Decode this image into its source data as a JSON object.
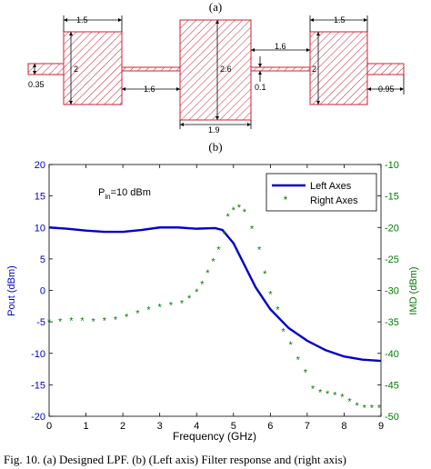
{
  "figure": {
    "caption_a": "(a)",
    "caption_b": "(b)",
    "caption": "Fig. 10.   (a) Designed LPF. (b) (Left axis) Filter response and (right axis)"
  },
  "layout_dims": {
    "d1": "1.5",
    "d2": "2",
    "d3": "0.35",
    "d4": "1.6",
    "d5": "2.6",
    "d6": "1.9",
    "d7": "1.6",
    "d8": "0.1",
    "d9": "2",
    "d10": "1.5",
    "d11": "0.95"
  },
  "chart_data": {
    "type": "line",
    "xlabel": "Frequency (GHz)",
    "ylabel_left": "Pout (dBm)",
    "ylabel_right": "IMD (dBm)",
    "xlim": [
      0,
      9
    ],
    "ylim_left": [
      -20,
      20
    ],
    "ylim_right": [
      -50,
      -10
    ],
    "xticks": [
      "0",
      "1",
      "2",
      "3",
      "4",
      "5",
      "6",
      "7",
      "8",
      "9"
    ],
    "yticks_left": [
      "20",
      "15",
      "10",
      "5",
      "0",
      "-5",
      "-10",
      "-15",
      "-20"
    ],
    "yticks_right": [
      "-10",
      "-15",
      "-20",
      "-25",
      "-30",
      "-35",
      "-40",
      "-45",
      "-50"
    ],
    "annotation": "P_in=10 dBm",
    "legend_position": "top-right",
    "colors": {
      "left": "#0000cc",
      "right": "#007a00"
    },
    "series": [
      {
        "name": "Left Axes",
        "axis": "left",
        "x": [
          0,
          0.5,
          1,
          1.5,
          2,
          2.5,
          3,
          3.5,
          4,
          4.5,
          4.7,
          5,
          5.3,
          5.6,
          6,
          6.5,
          7,
          7.5,
          8,
          8.5,
          9
        ],
        "y": [
          10,
          9.8,
          9.5,
          9.3,
          9.3,
          9.6,
          10,
          10,
          9.8,
          9.9,
          9.6,
          7.5,
          4,
          0.5,
          -3,
          -6,
          -8,
          -9.5,
          -10.5,
          -11,
          -11.2
        ]
      },
      {
        "name": "Right Axes",
        "axis": "right",
        "x": [
          0,
          0.3,
          0.6,
          0.9,
          1.2,
          1.5,
          1.8,
          2.1,
          2.4,
          2.7,
          3.0,
          3.3,
          3.6,
          3.8,
          4.0,
          4.15,
          4.3,
          4.45,
          4.6,
          4.75,
          4.85,
          5.0,
          5.15,
          5.3,
          5.5,
          5.7,
          5.85,
          6.0,
          6.2,
          6.35,
          6.55,
          6.75,
          6.95,
          7.15,
          7.35,
          7.55,
          7.75,
          7.95,
          8.15,
          8.35,
          8.55,
          8.75,
          8.95
        ],
        "y": [
          -35,
          -34.9,
          -34.8,
          -34.8,
          -34.9,
          -34.8,
          -34.6,
          -34.2,
          -33.6,
          -33.0,
          -32.6,
          -32.3,
          -32.0,
          -31.2,
          -30.2,
          -29.0,
          -27.2,
          -25.4,
          -23.5,
          -21.0,
          -18.2,
          -17.2,
          -16.8,
          -17.5,
          -20.2,
          -23.5,
          -27.3,
          -30.6,
          -33.0,
          -36.5,
          -38.6,
          -41.0,
          -43.0,
          -45.6,
          -46.2,
          -46.4,
          -46.6,
          -46.9,
          -47.6,
          -48.3,
          -48.6,
          -48.6,
          -48.6
        ]
      }
    ]
  }
}
